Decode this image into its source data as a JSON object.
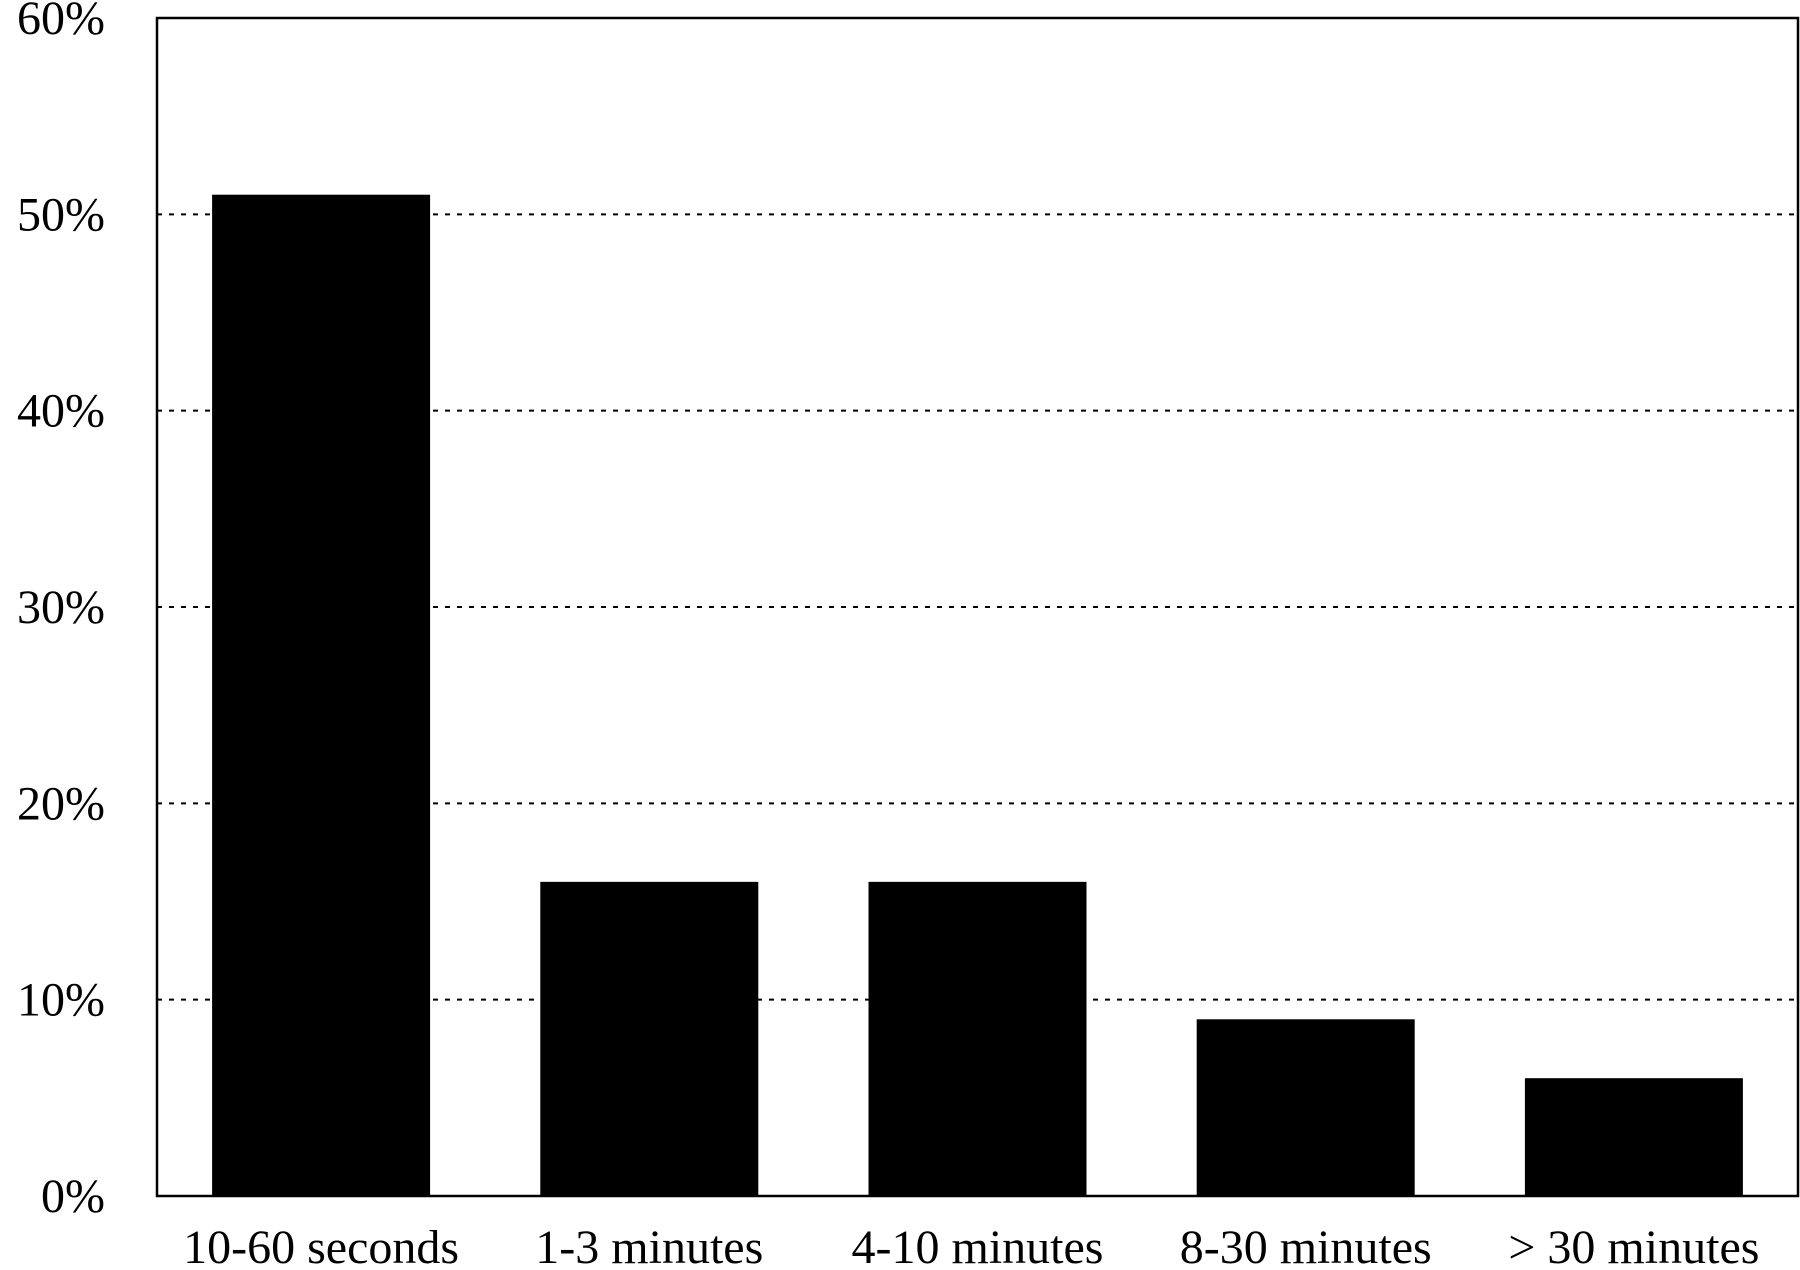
{
  "chart_data": {
    "type": "bar",
    "title": "",
    "xlabel": "",
    "ylabel": "",
    "categories": [
      "10-60 seconds",
      "1-3 minutes",
      "4-10 minutes",
      "8-30 minutes",
      "> 30 minutes"
    ],
    "values": [
      51,
      16,
      16,
      9,
      6
    ],
    "value_unit": "%",
    "ylim": [
      0,
      60
    ],
    "yticks": [
      0,
      10,
      20,
      30,
      40,
      50,
      60
    ],
    "ytick_labels": [
      "0%",
      "10%",
      "20%",
      "30%",
      "40%",
      "50%",
      "60%"
    ],
    "grid": "horizontal dotted",
    "legend": "none",
    "bar_color": "#000000"
  }
}
